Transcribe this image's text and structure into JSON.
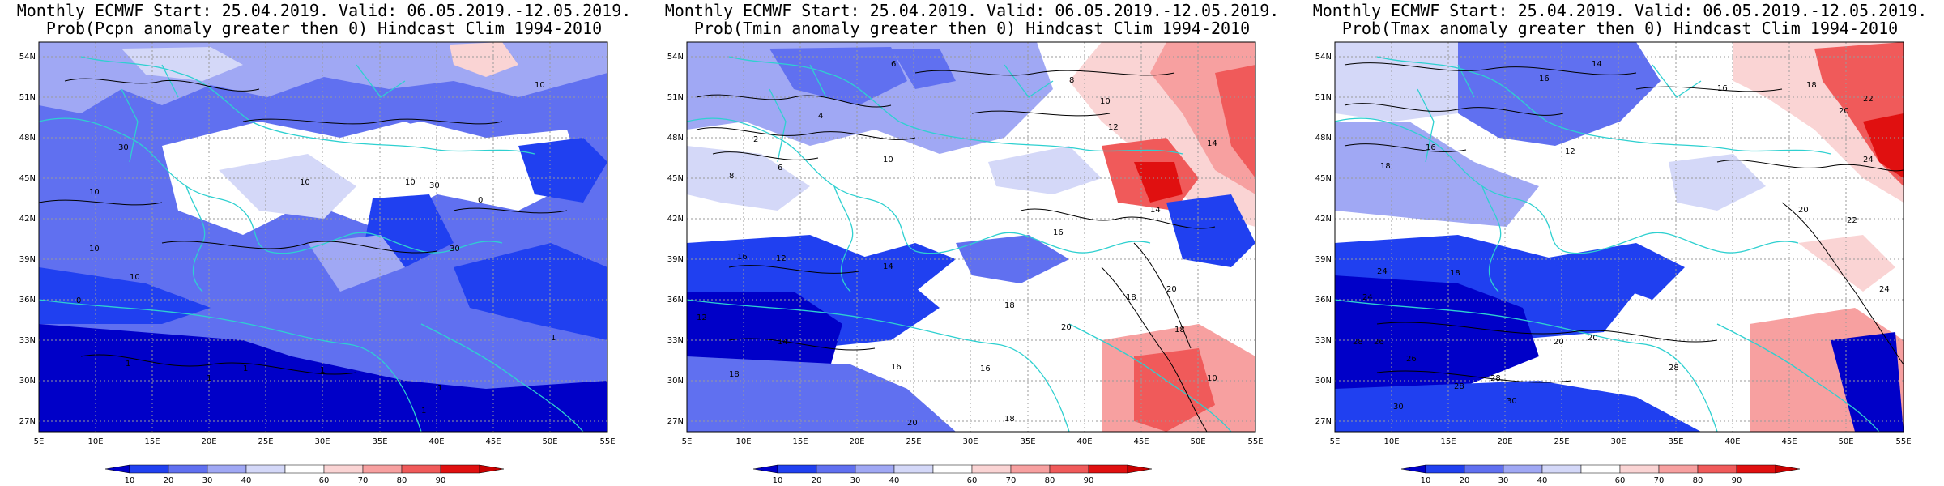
{
  "panels": [
    {
      "title_line1": "Monthly ECMWF Start: 25.04.2019. Valid: 06.05.2019.-12.05.2019.",
      "title_line2": "Prob(Pcpn anomaly greater then 0) Hindcast Clim 1994-2010",
      "contour_labels": [
        "10",
        "10",
        "30",
        "10",
        "10",
        "30",
        "0",
        "30",
        "10",
        "1",
        "1",
        "1",
        "1",
        "1",
        "1",
        "1",
        "0",
        "10"
      ]
    },
    {
      "title_line1": "Monthly ECMWF Start: 25.04.2019. Valid: 06.05.2019.-12.05.2019.",
      "title_line2": "Prob(Tmin anomaly greater then 0) Hindcast Clim 1994-2010",
      "contour_labels": [
        "6",
        "8",
        "10",
        "12",
        "14",
        "4",
        "2",
        "6",
        "8",
        "10",
        "14",
        "16",
        "12",
        "18",
        "20",
        "18",
        "16",
        "14",
        "12",
        "16",
        "18",
        "20",
        "20",
        "18",
        "10",
        "18",
        "16",
        "14"
      ]
    },
    {
      "title_line1": "Monthly ECMWF Start: 25.04.2019. Valid: 06.05.2019.-12.05.2019.",
      "title_line2": "Prob(Tmax anomaly greater then 0) Hindcast Clim 1994-2010",
      "contour_labels": [
        "14",
        "16",
        "18",
        "20",
        "22",
        "24",
        "16",
        "12",
        "16",
        "18",
        "20",
        "22",
        "24",
        "18",
        "20",
        "26",
        "28",
        "28",
        "30",
        "28",
        "20",
        "24",
        "30",
        "28",
        "26",
        "24"
      ]
    }
  ],
  "axes": {
    "lat_ticks": [
      "54N",
      "51N",
      "48N",
      "45N",
      "42N",
      "39N",
      "36N",
      "33N",
      "30N",
      "27N"
    ],
    "lon_ticks": [
      "5E",
      "10E",
      "15E",
      "20E",
      "25E",
      "30E",
      "35E",
      "40E",
      "45E",
      "50E",
      "55E"
    ]
  },
  "colorbar": {
    "labels": [
      "10",
      "20",
      "30",
      "40",
      "60",
      "70",
      "80",
      "90"
    ],
    "colors": [
      "#0000c8",
      "#2040f0",
      "#6070f0",
      "#a0a8f4",
      "#d4d8f8",
      "#ffffff",
      "#fad4d4",
      "#f7a0a0",
      "#f05a5a",
      "#e01010",
      "#c80000"
    ]
  },
  "colors": {
    "coast": "#2ed0d0",
    "contour": "#000000",
    "grid": "#9a9a9a"
  }
}
